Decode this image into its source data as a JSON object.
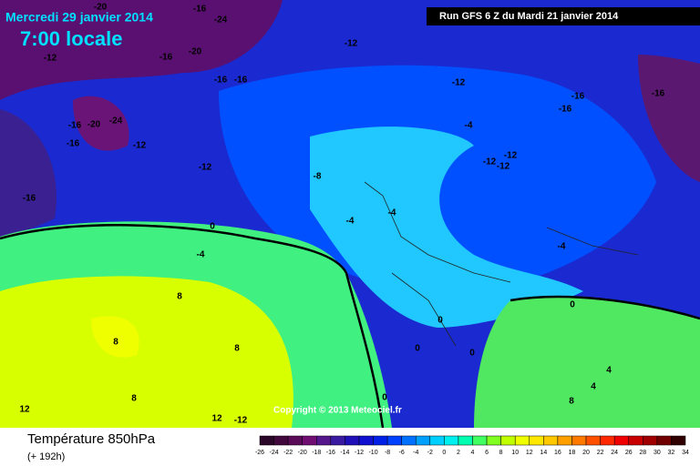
{
  "header": {
    "date": "Mercredi 29 janvier 2014",
    "time": "7:00 locale",
    "run": "Run GFS 6 Z du Mardi 21 janvier 2014"
  },
  "copyright": "Copyright © 2013 Meteociel.fr",
  "footer": {
    "title": "Température 850hPa",
    "lead": "(+ 192h)"
  },
  "contour_labels": [
    -20,
    -24,
    -16,
    -20,
    -16,
    -12,
    -12,
    -16,
    -16,
    -16,
    -20,
    -24,
    -16,
    -12,
    -12,
    -16,
    -8,
    -4,
    -12,
    -16,
    -16,
    -16,
    -12,
    -12,
    -12,
    -4,
    -4,
    0,
    -4,
    -4,
    8,
    8,
    8,
    8,
    12,
    12,
    -12,
    0,
    0,
    0,
    0,
    0,
    4,
    4,
    8
  ],
  "colorbar": {
    "ticks": [
      -26,
      -24,
      -22,
      -20,
      -18,
      -16,
      -14,
      -12,
      -10,
      -8,
      -6,
      -4,
      -2,
      0,
      2,
      4,
      6,
      8,
      10,
      12,
      14,
      16,
      18,
      20,
      22,
      24,
      26,
      28,
      30,
      32,
      34
    ],
    "colors": [
      "#2a0628",
      "#40083c",
      "#5a0c58",
      "#700e72",
      "#54168a",
      "#3a1aa0",
      "#2010b8",
      "#1010d0",
      "#0020e8",
      "#0040ff",
      "#0070ff",
      "#00a0ff",
      "#00d0ff",
      "#00f0f0",
      "#00ffb0",
      "#40ff60",
      "#80ff20",
      "#c0ff00",
      "#f0ff00",
      "#ffe800",
      "#ffc800",
      "#ffa000",
      "#ff7800",
      "#ff5000",
      "#ff2800",
      "#f00000",
      "#c80000",
      "#a00000",
      "#700000",
      "#300000"
    ]
  }
}
